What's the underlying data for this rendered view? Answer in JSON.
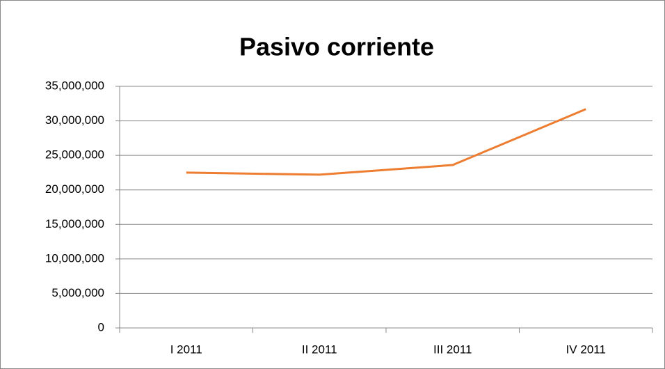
{
  "chart_data": {
    "type": "line",
    "title": "Pasivo corriente",
    "categories": [
      "I 2011",
      "II 2011",
      "III 2011",
      "IV 2011"
    ],
    "series": [
      {
        "name": "Pasivo corriente",
        "color": "#ed7d31",
        "values": [
          22500000,
          22200000,
          23600000,
          31700000
        ]
      }
    ],
    "ylim": [
      0,
      35000000
    ],
    "yticks": [
      0,
      {
        "value": 5000000,
        "label": "5,000,000"
      },
      {
        "value": 10000000,
        "label": "10,000,000"
      },
      {
        "value": 15000000,
        "label": "15,000,000"
      },
      {
        "value": 20000000,
        "label": "20,000,000"
      },
      {
        "value": 25000000,
        "label": "25,000,000"
      },
      {
        "value": 30000000,
        "label": "30,000,000"
      },
      {
        "value": 35000000,
        "label": "35,000,000"
      }
    ],
    "grid": true
  }
}
